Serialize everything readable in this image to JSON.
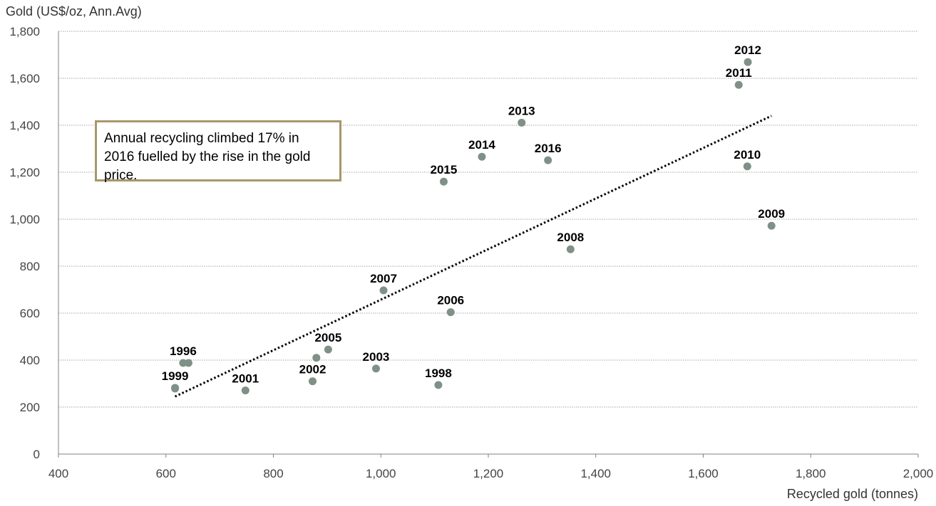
{
  "chart_data": {
    "type": "scatter",
    "ylabel": "Gold (US$/oz, Ann.Avg)",
    "xlabel": "Recycled gold (tonnes)",
    "xlim": [
      400,
      2000
    ],
    "ylim": [
      0,
      1800
    ],
    "x_ticks": [
      400,
      600,
      800,
      1000,
      1200,
      1400,
      1600,
      1800,
      2000
    ],
    "y_ticks": [
      0,
      200,
      400,
      600,
      800,
      1000,
      1200,
      1400,
      1600,
      1800
    ],
    "x_tick_labels": [
      "400",
      "600",
      "800",
      "1,000",
      "1,200",
      "1,400",
      "1,600",
      "1,800",
      "2,000"
    ],
    "y_tick_labels": [
      "0",
      "200",
      "400",
      "600",
      "800",
      "1,000",
      "1,200",
      "1,400",
      "1,600",
      "1,800"
    ],
    "grid": "horizontal dotted",
    "point_color": "#7f9186",
    "points": [
      {
        "label": "1996",
        "x": 632,
        "y": 388
      },
      {
        "label": "",
        "x": 642,
        "y": 388
      },
      {
        "label": "1999",
        "x": 617,
        "y": 282
      },
      {
        "label": "",
        "x": 617,
        "y": 279
      },
      {
        "label": "2001",
        "x": 748,
        "y": 271
      },
      {
        "label": "2002",
        "x": 873,
        "y": 310
      },
      {
        "label": "2005",
        "x": 902,
        "y": 445
      },
      {
        "label": "",
        "x": 880,
        "y": 410
      },
      {
        "label": "2003",
        "x": 991,
        "y": 364
      },
      {
        "label": "1998",
        "x": 1107,
        "y": 294
      },
      {
        "label": "2006",
        "x": 1130,
        "y": 604
      },
      {
        "label": "2007",
        "x": 1005,
        "y": 697
      },
      {
        "label": "2008",
        "x": 1353,
        "y": 872
      },
      {
        "label": "2009",
        "x": 1727,
        "y": 972
      },
      {
        "label": "2010",
        "x": 1682,
        "y": 1225
      },
      {
        "label": "2011",
        "x": 1666,
        "y": 1572
      },
      {
        "label": "2012",
        "x": 1683,
        "y": 1669
      },
      {
        "label": "2013",
        "x": 1262,
        "y": 1411
      },
      {
        "label": "2014",
        "x": 1188,
        "y": 1266
      },
      {
        "label": "2015",
        "x": 1117,
        "y": 1160
      },
      {
        "label": "2016",
        "x": 1311,
        "y": 1251
      }
    ],
    "trendline": {
      "x": [
        617,
        1727
      ],
      "y": [
        245,
        1440
      ],
      "style": "dotted",
      "color": "#000000"
    },
    "annotation": "Annual recycling climbed 17% in 2016 fuelled by the rise in the gold price."
  }
}
